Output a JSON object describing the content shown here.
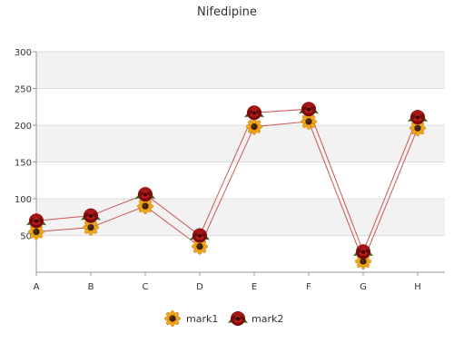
{
  "chart_data": {
    "type": "line",
    "title": "Nifedipine",
    "xlabel": "",
    "ylabel": "",
    "categories": [
      "A",
      "B",
      "C",
      "D",
      "E",
      "F",
      "G",
      "H"
    ],
    "ylim": [
      0,
      300
    ],
    "yticks": [
      50,
      100,
      150,
      200,
      250,
      300
    ],
    "grid": true,
    "legend": "bottom",
    "series": [
      {
        "name": "mark1",
        "values": [
          55,
          61,
          90,
          35,
          198,
          205,
          15,
          196
        ],
        "color": "#cc5555",
        "marker": "sunflower-icon"
      },
      {
        "name": "mark2",
        "values": [
          70,
          77,
          106,
          50,
          217,
          222,
          28,
          211
        ],
        "color": "#cc5555",
        "marker": "rose-icon"
      }
    ]
  }
}
